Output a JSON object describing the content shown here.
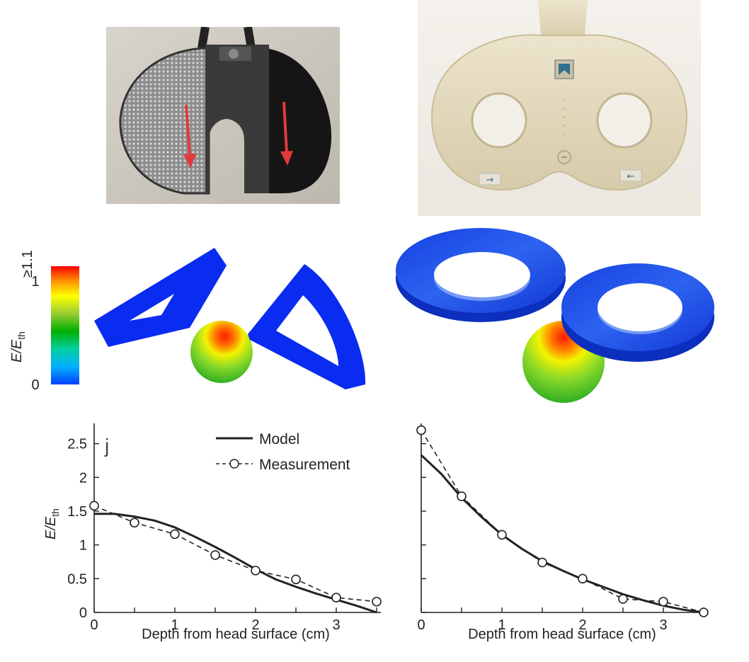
{
  "colorbar": {
    "axis_title": "E/E",
    "axis_title_sub": "th",
    "max_label": "≥1.1",
    "one_label": "1",
    "zero_label": "0",
    "colors": [
      "#ff0000",
      "#ff8c00",
      "#ffff00",
      "#9acd32",
      "#00b000",
      "#00cfa0",
      "#00b0ff",
      "#0040ff"
    ]
  },
  "legend": {
    "model": "Model",
    "measurement": "Measurement"
  },
  "panel_tag": "j",
  "colors": {
    "coil_blue": "#0a2bf0",
    "coil_outline": "#0018c0",
    "arrow_red": "#e23a3a",
    "figure8_beige": "#e2d9bf",
    "ink": "#222222"
  },
  "chart_data": [
    {
      "type": "line",
      "title": "",
      "xlabel": "Depth from head surface (cm)",
      "ylabel": "E/E",
      "ylabel_sub": "th",
      "xlim": [
        0,
        3.5
      ],
      "ylim": [
        0,
        2.8
      ],
      "xticks": [
        "0",
        "1",
        "2",
        "3"
      ],
      "yticks": [
        "0",
        "0.5",
        "1",
        "1.5",
        "2",
        "2.5"
      ],
      "legend_position": "top-center",
      "series": [
        {
          "name": "Model",
          "style": "solid",
          "x": [
            0,
            0.25,
            0.5,
            0.75,
            1.0,
            1.25,
            1.5,
            1.75,
            2.0,
            2.25,
            2.5,
            2.75,
            3.0,
            3.25,
            3.5
          ],
          "y": [
            1.46,
            1.46,
            1.42,
            1.36,
            1.26,
            1.12,
            0.97,
            0.81,
            0.64,
            0.49,
            0.38,
            0.28,
            0.19,
            0.1,
            0.0
          ]
        },
        {
          "name": "Measurement",
          "style": "dashed-circle",
          "x": [
            0,
            0.5,
            1.0,
            1.5,
            2.0,
            2.5,
            3.0,
            3.5
          ],
          "y": [
            1.58,
            1.33,
            1.16,
            0.85,
            0.62,
            0.49,
            0.22,
            0.16
          ]
        }
      ]
    },
    {
      "type": "line",
      "title": "",
      "xlabel": "Depth from head surface (cm)",
      "ylabel": "",
      "xlim": [
        0,
        3.5
      ],
      "ylim": [
        0,
        2.8
      ],
      "xticks": [
        "0",
        "1",
        "2",
        "3"
      ],
      "yticks": [],
      "series": [
        {
          "name": "Model",
          "style": "solid",
          "x": [
            0,
            0.25,
            0.5,
            0.75,
            1.0,
            1.25,
            1.5,
            1.75,
            2.0,
            2.25,
            2.5,
            2.75,
            3.0,
            3.25,
            3.5
          ],
          "y": [
            2.33,
            2.05,
            1.7,
            1.41,
            1.15,
            0.94,
            0.76,
            0.62,
            0.49,
            0.38,
            0.27,
            0.18,
            0.1,
            0.04,
            0.0
          ]
        },
        {
          "name": "Measurement",
          "style": "dashed-circle",
          "x": [
            0,
            0.5,
            1.0,
            1.5,
            2.0,
            2.5,
            3.0,
            3.5
          ],
          "y": [
            2.7,
            1.72,
            1.15,
            0.74,
            0.5,
            0.2,
            0.16,
            0.0
          ]
        }
      ]
    }
  ]
}
